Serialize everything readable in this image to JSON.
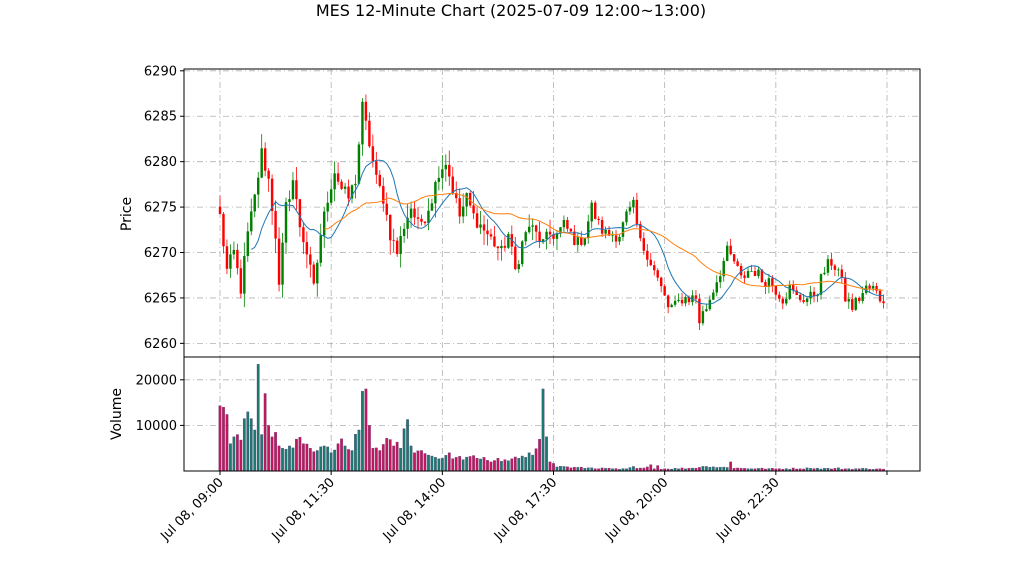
{
  "chart_data": {
    "title": "MES 12-Minute Chart (2025-07-09 12:00~13:00)",
    "type": "candlestick",
    "price_panel": {
      "ylabel": "Price",
      "ylim": [
        6258.5,
        6290.2
      ],
      "yticks": [
        6260,
        6265,
        6270,
        6275,
        6280,
        6285,
        6290
      ],
      "grid": true,
      "moving_averages": [
        {
          "name": "short",
          "color": "#1f77b4"
        },
        {
          "name": "long",
          "color": "#ff7f0e"
        }
      ],
      "up_color": "#008000",
      "down_color": "#ff0000",
      "close_anchors": [
        [
          0,
          6274
        ],
        [
          2,
          6268
        ],
        [
          4,
          6270
        ],
        [
          6,
          6266
        ],
        [
          8,
          6272
        ],
        [
          10,
          6276
        ],
        [
          12,
          6281
        ],
        [
          14,
          6278
        ],
        [
          16,
          6272
        ],
        [
          17,
          6266
        ],
        [
          19,
          6275
        ],
        [
          21,
          6278
        ],
        [
          23,
          6273
        ],
        [
          25,
          6270
        ],
        [
          27,
          6266
        ],
        [
          29,
          6272
        ],
        [
          31,
          6276
        ],
        [
          33,
          6279
        ],
        [
          35,
          6277
        ],
        [
          37,
          6276
        ],
        [
          39,
          6278
        ],
        [
          41,
          6286
        ],
        [
          43,
          6282
        ],
        [
          45,
          6278
        ],
        [
          47,
          6276
        ],
        [
          49,
          6272
        ],
        [
          51,
          6270
        ],
        [
          53,
          6273
        ],
        [
          55,
          6275
        ],
        [
          57,
          6273
        ],
        [
          59,
          6274
        ],
        [
          61,
          6276
        ],
        [
          63,
          6279
        ],
        [
          65,
          6280
        ],
        [
          67,
          6277
        ],
        [
          69,
          6274
        ],
        [
          71,
          6276
        ],
        [
          73,
          6274
        ],
        [
          75,
          6273
        ],
        [
          77,
          6272
        ],
        [
          79,
          6271
        ],
        [
          81,
          6270
        ],
        [
          83,
          6272
        ],
        [
          85,
          6268
        ],
        [
          87,
          6271
        ],
        [
          89,
          6273
        ],
        [
          91,
          6272
        ],
        [
          93,
          6271
        ],
        [
          95,
          6272
        ],
        [
          97,
          6272
        ],
        [
          99,
          6273
        ],
        [
          101,
          6272
        ],
        [
          103,
          6271
        ],
        [
          105,
          6272
        ],
        [
          107,
          6275
        ],
        [
          109,
          6273
        ],
        [
          111,
          6272
        ],
        [
          113,
          6272
        ],
        [
          115,
          6272
        ],
        [
          117,
          6274
        ],
        [
          119,
          6275
        ],
        [
          121,
          6271
        ],
        [
          123,
          6270
        ],
        [
          125,
          6268
        ],
        [
          127,
          6266
        ],
        [
          129,
          6264
        ],
        [
          131,
          6264
        ],
        [
          133,
          6265
        ],
        [
          135,
          6265
        ],
        [
          137,
          6265
        ],
        [
          138,
          6262.5
        ],
        [
          140,
          6264
        ],
        [
          142,
          6266
        ],
        [
          144,
          6268
        ],
        [
          146,
          6270
        ],
        [
          148,
          6269
        ],
        [
          150,
          6267
        ],
        [
          152,
          6268
        ],
        [
          154,
          6268
        ],
        [
          156,
          6267
        ],
        [
          158,
          6267
        ],
        [
          160,
          6266
        ],
        [
          162,
          6265
        ],
        [
          164,
          6266
        ],
        [
          166,
          6265
        ],
        [
          168,
          6265
        ],
        [
          170,
          6265
        ],
        [
          172,
          6266
        ],
        [
          174,
          6268
        ],
        [
          176,
          6269
        ],
        [
          178,
          6268
        ],
        [
          180,
          6265
        ],
        [
          182,
          6264
        ],
        [
          184,
          6265
        ],
        [
          186,
          6266
        ],
        [
          188,
          6266
        ],
        [
          190,
          6265
        ]
      ]
    },
    "volume_panel": {
      "ylabel": "Volume",
      "ylim": [
        0,
        25000
      ],
      "yticks": [
        10000,
        20000
      ],
      "grid": true,
      "volume_anchors": [
        [
          0,
          14300
        ],
        [
          1,
          14000
        ],
        [
          2,
          12400
        ],
        [
          3,
          6000
        ],
        [
          4,
          7500
        ],
        [
          5,
          8000
        ],
        [
          6,
          6800
        ],
        [
          7,
          11500
        ],
        [
          8,
          13000
        ],
        [
          9,
          11500
        ],
        [
          10,
          9000
        ],
        [
          11,
          23400
        ],
        [
          12,
          8000
        ],
        [
          13,
          17000
        ],
        [
          14,
          10000
        ],
        [
          15,
          7500
        ],
        [
          16,
          8500
        ],
        [
          17,
          5500
        ],
        [
          18,
          5000
        ],
        [
          19,
          4800
        ],
        [
          20,
          5500
        ],
        [
          22,
          7000
        ],
        [
          24,
          6000
        ],
        [
          26,
          5000
        ],
        [
          28,
          4500
        ],
        [
          30,
          5500
        ],
        [
          32,
          4000
        ],
        [
          34,
          6000
        ],
        [
          36,
          5500
        ],
        [
          38,
          4500
        ],
        [
          40,
          9000
        ],
        [
          41,
          17500
        ],
        [
          42,
          18000
        ],
        [
          43,
          10000
        ],
        [
          44,
          5000
        ],
        [
          46,
          4500
        ],
        [
          48,
          7200
        ],
        [
          50,
          5500
        ],
        [
          52,
          5000
        ],
        [
          54,
          11300
        ],
        [
          55,
          5500
        ],
        [
          56,
          4000
        ],
        [
          58,
          4500
        ],
        [
          60,
          3500
        ],
        [
          62,
          3000
        ],
        [
          64,
          2800
        ],
        [
          66,
          4000
        ],
        [
          68,
          3000
        ],
        [
          70,
          2500
        ],
        [
          72,
          3200
        ],
        [
          74,
          2800
        ],
        [
          76,
          3000
        ],
        [
          78,
          2000
        ],
        [
          80,
          2800
        ],
        [
          82,
          2500
        ],
        [
          84,
          2700
        ],
        [
          86,
          2800
        ],
        [
          88,
          3000
        ],
        [
          90,
          3500
        ],
        [
          92,
          7000
        ],
        [
          93,
          18000
        ],
        [
          94,
          7500
        ],
        [
          95,
          2000
        ],
        [
          97,
          900
        ],
        [
          99,
          1000
        ],
        [
          101,
          700
        ],
        [
          103,
          800
        ],
        [
          105,
          600
        ],
        [
          107,
          700
        ],
        [
          109,
          500
        ],
        [
          111,
          600
        ],
        [
          113,
          500
        ],
        [
          115,
          400
        ],
        [
          117,
          500
        ],
        [
          119,
          1000
        ],
        [
          120,
          600
        ],
        [
          125,
          500
        ],
        [
          128,
          500
        ],
        [
          135,
          600
        ],
        [
          140,
          1000
        ],
        [
          150,
          600
        ],
        [
          160,
          500
        ],
        [
          170,
          600
        ],
        [
          180,
          500
        ],
        [
          190,
          500
        ]
      ],
      "volume_spikes": [
        [
          113,
          800
        ],
        [
          123,
          900
        ],
        [
          124,
          1400
        ],
        [
          126,
          1200
        ],
        [
          147,
          2000
        ],
        [
          150,
          900
        ],
        [
          170,
          700
        ],
        [
          178,
          700
        ]
      ]
    },
    "x_axis": {
      "tick_labels": [
        "Jul 08, 09:00",
        "Jul 08, 11:30",
        "Jul 08, 14:00",
        "Jul 08, 17:30",
        "Jul 08, 20:00",
        "Jul 08, 22:30",
        ""
      ],
      "tick_indices": [
        0,
        32,
        64,
        96,
        128,
        160,
        192
      ],
      "bar_count": 192,
      "label_rotation": 45
    }
  }
}
